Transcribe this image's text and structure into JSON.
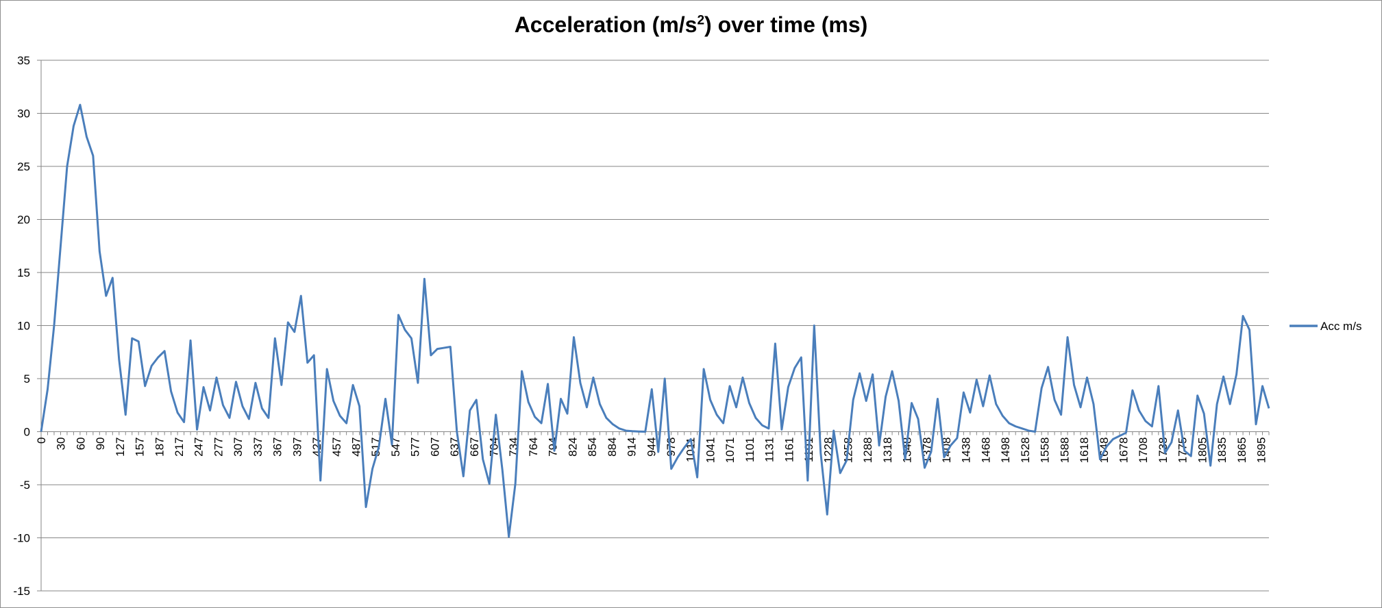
{
  "chart_data": {
    "type": "line",
    "title": {
      "before": "Acceleration (m/s",
      "sup": "2",
      "after": ") over time (ms)"
    },
    "xlabel": "",
    "ylabel": "",
    "ylim": [
      -15,
      35
    ],
    "yticks": [
      35,
      30,
      25,
      20,
      15,
      10,
      5,
      0,
      -5,
      -10,
      -15
    ],
    "grid": "horizontal",
    "legend_position": "right",
    "x_tick_labels": [
      "0",
      "30",
      "60",
      "90",
      "127",
      "157",
      "187",
      "217",
      "247",
      "277",
      "307",
      "337",
      "367",
      "397",
      "427",
      "457",
      "487",
      "517",
      "547",
      "577",
      "607",
      "637",
      "667",
      "704",
      "734",
      "764",
      "794",
      "824",
      "854",
      "884",
      "914",
      "944",
      "978",
      "1011",
      "1041",
      "1071",
      "1101",
      "1131",
      "1161",
      "1191",
      "1228",
      "1258",
      "1288",
      "1318",
      "1348",
      "1378",
      "1408",
      "1438",
      "1468",
      "1498",
      "1528",
      "1558",
      "1588",
      "1618",
      "1648",
      "1678",
      "1708",
      "1738",
      "1775",
      "1805",
      "1835",
      "1865",
      "1895"
    ],
    "series": [
      {
        "name": "Acc m/s",
        "color": "#4a7ebb",
        "values": [
          0.0,
          4.0,
          10.0,
          17.5,
          25.0,
          28.8,
          30.8,
          27.8,
          26.0,
          17.0,
          12.8,
          14.5,
          6.8,
          1.6,
          8.8,
          8.5,
          4.3,
          6.2,
          7.0,
          7.6,
          3.8,
          1.8,
          0.9,
          8.6,
          0.2,
          4.2,
          2.0,
          5.1,
          2.5,
          1.3,
          4.7,
          2.4,
          1.2,
          4.6,
          2.2,
          1.3,
          8.8,
          4.4,
          10.3,
          9.4,
          12.8,
          6.5,
          7.2,
          -4.6,
          5.9,
          2.9,
          1.5,
          0.8,
          4.4,
          2.4,
          -7.1,
          -3.5,
          -1.4,
          3.1,
          -1.2,
          11.0,
          9.6,
          8.8,
          4.6,
          14.4,
          7.2,
          7.8,
          7.9,
          8.0,
          0.0,
          -4.2,
          2.0,
          3.0,
          -2.6,
          -4.9,
          1.6,
          -3.6,
          -9.9,
          -4.9,
          5.7,
          2.8,
          1.4,
          0.8,
          4.5,
          -1.8,
          3.1,
          1.7,
          8.9,
          4.6,
          2.3,
          5.1,
          2.6,
          1.3,
          0.7,
          0.3,
          0.1,
          0.05,
          0.02,
          0.0,
          4.0,
          -1.9,
          5.0,
          -3.5,
          -2.4,
          -1.5,
          -0.7,
          -4.3,
          5.9,
          3.0,
          1.6,
          0.8,
          4.3,
          2.3,
          5.1,
          2.7,
          1.3,
          0.6,
          0.3,
          8.3,
          0.2,
          4.2,
          6.0,
          7.0,
          -4.6,
          10.0,
          -2.0,
          -7.8,
          0.1,
          -3.9,
          -2.7,
          3.0,
          5.5,
          2.9,
          5.4,
          -1.3,
          3.3,
          5.7,
          2.9,
          -2.6,
          2.7,
          1.2,
          -3.4,
          -1.9,
          3.1,
          -2.4,
          -1.3,
          -0.6,
          3.7,
          1.8,
          4.9,
          2.4,
          5.3,
          2.6,
          1.5,
          0.8,
          0.5,
          0.3,
          0.1,
          0.0,
          4.1,
          6.1,
          3.0,
          1.6,
          8.9,
          4.4,
          2.3,
          5.1,
          2.6,
          -2.6,
          -1.4,
          -0.7,
          -0.4,
          -0.1,
          3.9,
          2.0,
          1.0,
          0.5,
          4.3,
          -2.0,
          -1.0,
          2.0,
          -1.8,
          -2.3,
          3.4,
          1.7,
          -3.2,
          2.6,
          5.2,
          2.6,
          5.4,
          10.9,
          9.6,
          0.7,
          4.3,
          2.2
        ]
      }
    ]
  }
}
